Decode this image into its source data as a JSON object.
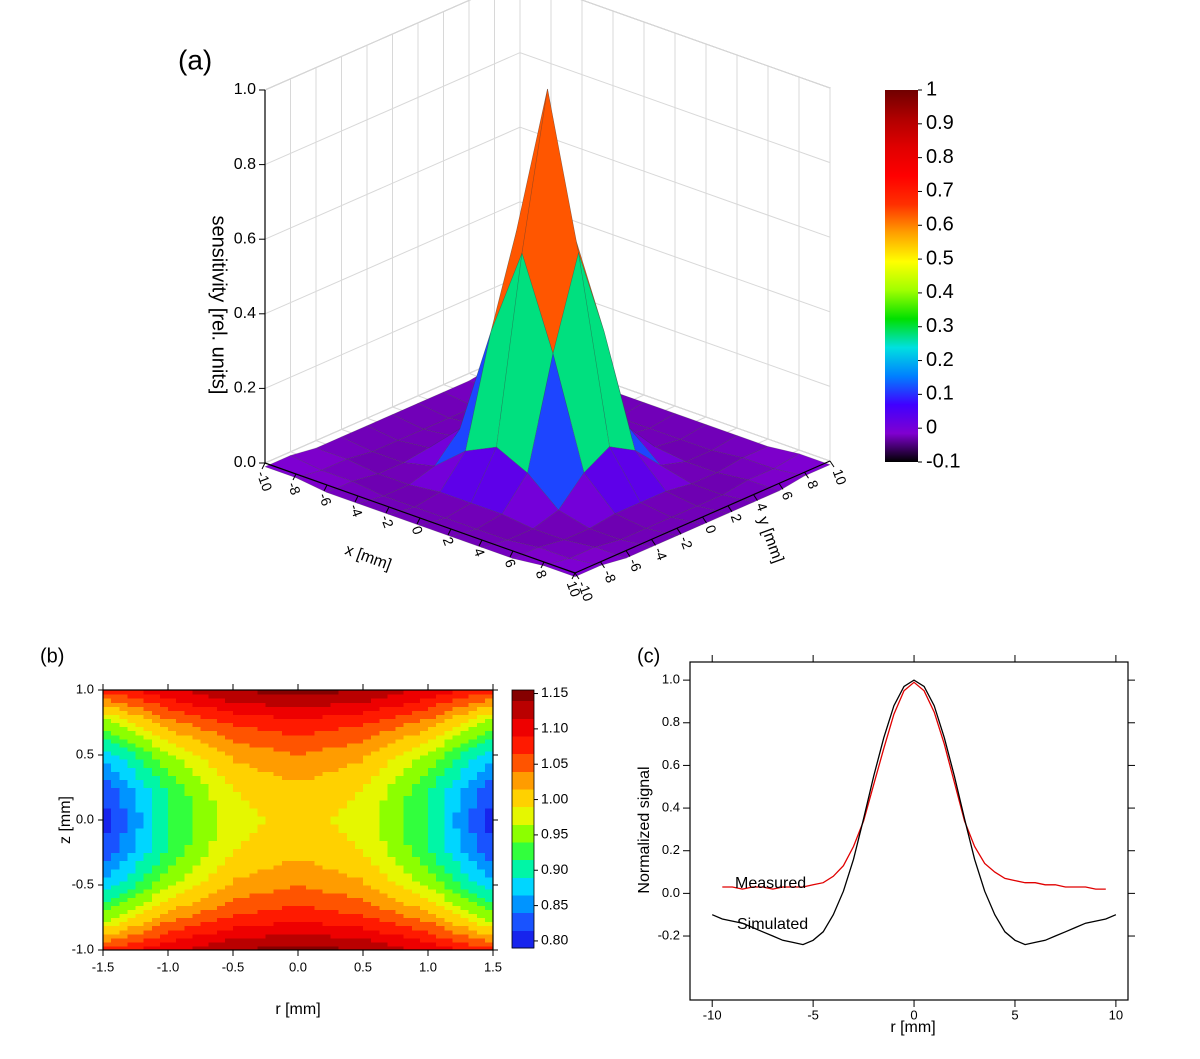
{
  "chart_data": [
    {
      "type": "surface3d",
      "panel_label": "(a)",
      "x": [
        -10,
        -8,
        -6,
        -4,
        -2,
        0,
        2,
        4,
        6,
        8,
        10
      ],
      "y": [
        -10,
        -8,
        -6,
        -4,
        -2,
        0,
        2,
        4,
        6,
        8,
        10
      ],
      "z": [
        [
          -0.01,
          -0.01,
          -0.02,
          -0.02,
          -0.02,
          -0.02,
          -0.02,
          -0.02,
          -0.02,
          -0.01,
          -0.01
        ],
        [
          -0.01,
          -0.02,
          -0.02,
          -0.03,
          -0.03,
          -0.03,
          -0.03,
          -0.03,
          -0.02,
          -0.02,
          -0.01
        ],
        [
          -0.02,
          -0.02,
          -0.03,
          -0.03,
          -0.02,
          -0.02,
          -0.02,
          -0.03,
          -0.03,
          -0.02,
          -0.02
        ],
        [
          -0.02,
          -0.03,
          -0.03,
          -0.01,
          0.06,
          0.1,
          0.06,
          -0.01,
          -0.03,
          -0.03,
          -0.02
        ],
        [
          -0.02,
          -0.03,
          -0.02,
          0.06,
          0.35,
          0.59,
          0.35,
          0.06,
          -0.02,
          -0.03,
          -0.02
        ],
        [
          -0.02,
          -0.03,
          -0.02,
          0.1,
          0.59,
          1.0,
          0.59,
          0.1,
          -0.02,
          -0.03,
          -0.02
        ],
        [
          -0.02,
          -0.03,
          -0.02,
          0.06,
          0.35,
          0.59,
          0.35,
          0.06,
          -0.02,
          -0.03,
          -0.02
        ],
        [
          -0.02,
          -0.03,
          -0.03,
          -0.01,
          0.06,
          0.1,
          0.06,
          -0.01,
          -0.03,
          -0.03,
          -0.02
        ],
        [
          -0.02,
          -0.02,
          -0.03,
          -0.03,
          -0.02,
          -0.02,
          -0.02,
          -0.03,
          -0.03,
          -0.02,
          -0.02
        ],
        [
          -0.01,
          -0.02,
          -0.02,
          -0.03,
          -0.03,
          -0.03,
          -0.03,
          -0.03,
          -0.02,
          -0.02,
          -0.01
        ],
        [
          -0.01,
          -0.01,
          -0.02,
          -0.02,
          -0.02,
          -0.02,
          -0.02,
          -0.02,
          -0.02,
          -0.01,
          -0.01
        ]
      ],
      "xlabel": "x [mm]",
      "ylabel": "y [mm]",
      "zlabel": "sensitivity [rel. units]",
      "xlim": [
        -10,
        10
      ],
      "ylim": [
        -10,
        10
      ],
      "zlim": [
        0,
        1
      ],
      "xticks": [
        -10,
        -8,
        -6,
        -4,
        -2,
        0,
        2,
        4,
        6,
        8,
        10
      ],
      "yticks": [
        -10,
        -8,
        -6,
        -4,
        -2,
        0,
        2,
        4,
        6,
        8,
        10
      ],
      "zticks": [
        {
          "value": 0,
          "label": "0.0"
        },
        0.2,
        0.4,
        0.6,
        0.8,
        {
          "value": 1,
          "label": "1.0"
        }
      ],
      "grid": true,
      "colorbar": {
        "lim": [
          -0.1,
          1
        ],
        "ticks": [
          -0.1,
          0,
          0.1,
          0.2,
          0.3,
          0.4,
          0.5,
          0.6,
          0.7,
          0.8,
          0.9,
          1
        ],
        "colormap": [
          "#000000",
          "#8000d0",
          "#4000ff",
          "#0080ff",
          "#00e0e0",
          "#00e000",
          "#a0ff00",
          "#ffff00",
          "#ffa000",
          "#ff3000",
          "#ff0000",
          "#e00000",
          "#b00000",
          "#700000"
        ]
      }
    },
    {
      "type": "contour",
      "panel_label": "(b)",
      "x": [
        -1.5,
        -1,
        -0.5,
        0,
        0.5,
        1,
        1.5
      ],
      "y": [
        -1,
        -0.75,
        -0.5,
        -0.25,
        0,
        0.25,
        0.5,
        0.75,
        1
      ],
      "z": [
        [
          1.07,
          1.11,
          1.14,
          1.15,
          1.14,
          1.11,
          1.07
        ],
        [
          0.95,
          1.03,
          1.07,
          1.08,
          1.07,
          1.03,
          0.95
        ],
        [
          0.87,
          0.96,
          1.02,
          1.04,
          1.02,
          0.96,
          0.87
        ],
        [
          0.82,
          0.92,
          0.99,
          1.01,
          0.99,
          0.92,
          0.82
        ],
        [
          0.8,
          0.91,
          0.98,
          1.0,
          0.98,
          0.91,
          0.8
        ],
        [
          0.82,
          0.92,
          0.99,
          1.01,
          0.99,
          0.92,
          0.82
        ],
        [
          0.87,
          0.96,
          1.02,
          1.04,
          1.02,
          0.96,
          0.87
        ],
        [
          0.95,
          1.03,
          1.07,
          1.08,
          1.07,
          1.03,
          0.95
        ],
        [
          1.07,
          1.11,
          1.14,
          1.15,
          1.14,
          1.11,
          1.07
        ]
      ],
      "xlabel": "r [mm]",
      "ylabel": "z [mm]",
      "xlim": [
        -1.5,
        1.5
      ],
      "ylim": [
        -1,
        1
      ],
      "xticks": [
        -1.5,
        {
          "value": -1,
          "label": "-1.0"
        },
        -0.5,
        {
          "value": 0,
          "label": "0.0"
        },
        0.5,
        {
          "value": 1,
          "label": "1.0"
        },
        1.5
      ],
      "yticks": [
        {
          "value": -1,
          "label": "-1.0"
        },
        -0.5,
        {
          "value": 0,
          "label": "0.0"
        },
        0.5,
        {
          "value": 1,
          "label": "1.0"
        }
      ],
      "colorbar": {
        "lim": [
          0.79,
          1.155
        ],
        "ticks": [
          {
            "value": 0.8,
            "label": "0.80"
          },
          {
            "value": 0.85,
            "label": "0.85"
          },
          {
            "value": 0.9,
            "label": "0.90"
          },
          {
            "value": 0.95,
            "label": "0.95"
          },
          {
            "value": 1,
            "label": "1.00"
          },
          {
            "value": 1.05,
            "label": "1.05"
          },
          {
            "value": 1.1,
            "label": "1.10"
          },
          {
            "value": 1.15,
            "label": "1.15"
          }
        ],
        "colormap": [
          "#1010e0",
          "#2040ff",
          "#0090ff",
          "#00e0ff",
          "#00ff80",
          "#60ff00",
          "#e0ff00",
          "#ffd000",
          "#ff9000",
          "#ff3000",
          "#ff0000",
          "#c00000",
          "#800000"
        ]
      }
    },
    {
      "type": "line",
      "panel_label": "(c)",
      "x": [
        -10,
        -9.5,
        -9,
        -8.5,
        -8,
        -7.5,
        -7,
        -6.5,
        -6,
        -5.5,
        -5,
        -4.5,
        -4,
        -3.5,
        -3,
        -2.5,
        -2,
        -1.5,
        -1,
        -0.5,
        0,
        0.5,
        1,
        1.5,
        2,
        2.5,
        3,
        3.5,
        4,
        4.5,
        5,
        5.5,
        6,
        6.5,
        7,
        7.5,
        8,
        8.5,
        9,
        9.5,
        10
      ],
      "series": [
        {
          "name": "Measured",
          "color": "#e00000",
          "values": [
            null,
            0.03,
            0.03,
            0.02,
            0.03,
            0.03,
            0.02,
            0.03,
            0.03,
            0.03,
            0.04,
            0.05,
            0.08,
            0.13,
            0.22,
            0.34,
            0.51,
            0.68,
            0.84,
            0.95,
            0.99,
            0.95,
            0.85,
            0.7,
            0.52,
            0.34,
            0.22,
            0.14,
            0.1,
            0.07,
            0.06,
            0.05,
            0.05,
            0.04,
            0.04,
            0.03,
            0.03,
            0.03,
            0.02,
            0.02,
            null
          ]
        },
        {
          "name": "Simulated",
          "color": "#000000",
          "values": [
            -0.1,
            -0.12,
            -0.13,
            -0.14,
            -0.16,
            -0.18,
            -0.2,
            -0.22,
            -0.23,
            -0.24,
            -0.22,
            -0.18,
            -0.1,
            0.01,
            0.16,
            0.35,
            0.55,
            0.73,
            0.88,
            0.97,
            1.0,
            0.97,
            0.88,
            0.73,
            0.55,
            0.35,
            0.16,
            0.01,
            -0.1,
            -0.18,
            -0.22,
            -0.24,
            -0.23,
            -0.22,
            -0.2,
            -0.18,
            -0.16,
            -0.14,
            -0.13,
            -0.12,
            -0.1
          ]
        }
      ],
      "xlabel": "r [mm]",
      "ylabel": "Normalized signal",
      "xlim": [
        -11.1,
        10.6
      ],
      "ylim": [
        -0.5,
        1.085
      ],
      "xticks": [
        -10,
        -5,
        0,
        5,
        10
      ],
      "yticks": [
        -0.2,
        {
          "value": 0,
          "label": "0.0"
        },
        0.2,
        0.4,
        0.6,
        0.8,
        {
          "value": 1,
          "label": "1.0"
        }
      ]
    }
  ]
}
